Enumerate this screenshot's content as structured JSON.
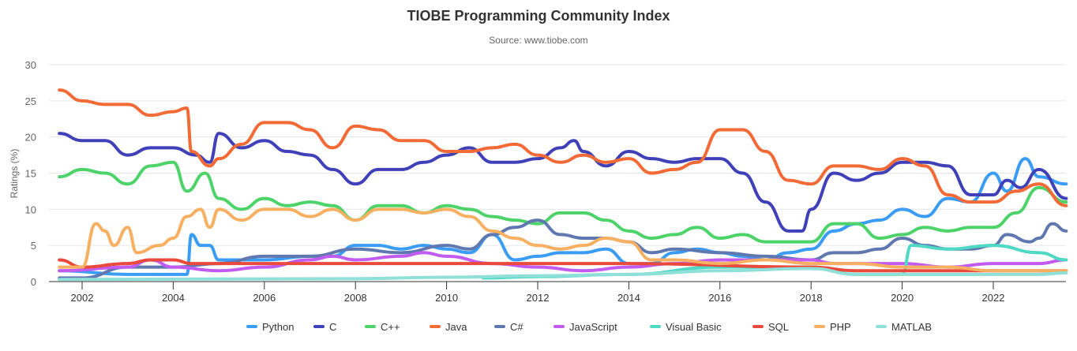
{
  "chart_data": {
    "type": "line",
    "title": "TIOBE Programming Community Index",
    "subtitle": "Source: www.tiobe.com",
    "xlabel": "",
    "ylabel": "Ratings (%)",
    "ylim": [
      0,
      30
    ],
    "xlim": [
      2001.5,
      2023.7
    ],
    "yticks": [
      "0",
      "5",
      "10",
      "15",
      "20",
      "25",
      "30"
    ],
    "xticks": [
      "2002",
      "2004",
      "2006",
      "2008",
      "2010",
      "2012",
      "2014",
      "2016",
      "2018",
      "2020",
      "2022"
    ],
    "grid": true,
    "legend": "bottom",
    "series": [
      {
        "name": "Python",
        "color": "#3a9cf5",
        "x": [
          2001.5,
          2003,
          2004,
          2004.3,
          2004.4,
          2004.6,
          2004.8,
          2005,
          2006,
          2007,
          2007.5,
          2008,
          2008.5,
          2009,
          2009.5,
          2010,
          2010.5,
          2011,
          2011.5,
          2012,
          2012.5,
          2013,
          2013.5,
          2014,
          2014.5,
          2015,
          2015.5,
          2016,
          2016.5,
          2017,
          2017.5,
          2018,
          2018.5,
          2019,
          2019.5,
          2020,
          2020.5,
          2021,
          2021.5,
          2022,
          2022.3,
          2022.7,
          2023,
          2023.6
        ],
        "y": [
          1.5,
          1,
          1,
          1,
          6.5,
          5,
          5,
          3,
          3,
          3.5,
          3.5,
          5,
          5,
          4.5,
          5,
          4.5,
          4,
          6.5,
          3,
          3.5,
          4,
          4,
          4.5,
          2.5,
          2.5,
          4,
          4.5,
          4,
          3.5,
          3,
          4,
          4.5,
          7,
          8,
          8.5,
          10,
          9,
          11.5,
          11,
          15,
          12.5,
          17,
          14.5,
          13.5
        ]
      },
      {
        "name": "C",
        "color": "#4040b8",
        "x": [
          2001.5,
          2002,
          2002.5,
          2003,
          2003.5,
          2004,
          2004.5,
          2004.8,
          2005,
          2005.5,
          2006,
          2006.5,
          2007,
          2007.5,
          2008,
          2008.5,
          2009,
          2009.5,
          2010,
          2010.5,
          2011,
          2011.5,
          2012,
          2012.5,
          2012.8,
          2013,
          2013.5,
          2014,
          2014.5,
          2015,
          2015.5,
          2016,
          2016.5,
          2017,
          2017.5,
          2017.8,
          2018,
          2018.5,
          2019,
          2019.5,
          2020,
          2020.5,
          2021,
          2021.5,
          2022,
          2022.3,
          2022.6,
          2023,
          2023.6
        ],
        "y": [
          20.5,
          19.5,
          19.5,
          17.5,
          18.5,
          18.5,
          17.5,
          16.5,
          20.5,
          18.5,
          19.5,
          18,
          17.5,
          15.5,
          13.5,
          15.5,
          15.5,
          16.5,
          17.5,
          18.5,
          16.5,
          16.5,
          17,
          18.5,
          19.5,
          18,
          16,
          18,
          17,
          16.5,
          17,
          17,
          15,
          11,
          7,
          7,
          10,
          15,
          14,
          15,
          16.5,
          16.5,
          16,
          12,
          12,
          14,
          13,
          15.5,
          11.5
        ]
      },
      {
        "name": "C++",
        "color": "#4dd36a",
        "x": [
          2001.5,
          2002,
          2002.5,
          2003,
          2003.5,
          2004,
          2004.3,
          2004.7,
          2005,
          2005.5,
          2006,
          2006.5,
          2007,
          2007.5,
          2008,
          2008.5,
          2009,
          2009.5,
          2010,
          2010.5,
          2011,
          2011.5,
          2012,
          2012.5,
          2013,
          2013.5,
          2014,
          2014.5,
          2015,
          2015.5,
          2016,
          2016.5,
          2017,
          2017.5,
          2018,
          2018.5,
          2019,
          2019.5,
          2020,
          2020.5,
          2021,
          2021.5,
          2022,
          2022.5,
          2023,
          2023.6
        ],
        "y": [
          14.5,
          15.5,
          15,
          13.5,
          16,
          16.5,
          12.5,
          15,
          11.5,
          10,
          11.5,
          10.5,
          11,
          10.5,
          8.5,
          10.5,
          10.5,
          9.5,
          10.5,
          10,
          9,
          8.5,
          8,
          9.5,
          9.5,
          8.5,
          7,
          6,
          6.5,
          7.5,
          6,
          6.5,
          5.5,
          5.5,
          5.5,
          8,
          8,
          6,
          6.5,
          7.5,
          7,
          7.5,
          7.5,
          9.5,
          13,
          11
        ]
      },
      {
        "name": "Java",
        "color": "#f26a36",
        "x": [
          2001.5,
          2002,
          2002.5,
          2003,
          2003.5,
          2004,
          2004.3,
          2004.4,
          2004.8,
          2005,
          2005.5,
          2006,
          2006.5,
          2007,
          2007.5,
          2008,
          2008.5,
          2009,
          2009.5,
          2010,
          2010.5,
          2011,
          2011.5,
          2012,
          2012.5,
          2013,
          2013.5,
          2014,
          2014.5,
          2015,
          2015.5,
          2016,
          2016.5,
          2017,
          2017.5,
          2018,
          2018.5,
          2019,
          2019.5,
          2020,
          2020.5,
          2021,
          2021.5,
          2022,
          2022.5,
          2023,
          2023.6
        ],
        "y": [
          26.5,
          25,
          24.5,
          24.5,
          23,
          23.5,
          24,
          18,
          16,
          17,
          19,
          22,
          22,
          21,
          18.5,
          21.5,
          21,
          19.5,
          19.5,
          18,
          18,
          18.5,
          19,
          17.5,
          16.5,
          17.5,
          16.5,
          17,
          15,
          15.5,
          16.5,
          21,
          21,
          18,
          14,
          13.5,
          16,
          16,
          15.5,
          17,
          16,
          12,
          11,
          11,
          12.5,
          13.5,
          10.5
        ]
      },
      {
        "name": "C#",
        "color": "#6078b0",
        "x": [
          2001.5,
          2002,
          2003,
          2004,
          2005,
          2006,
          2007,
          2008,
          2009,
          2010,
          2010.5,
          2011,
          2011.5,
          2012,
          2012.5,
          2013,
          2013.5,
          2014,
          2014.5,
          2015,
          2016,
          2017,
          2018,
          2018.5,
          2019,
          2019.5,
          2020,
          2020.5,
          2021,
          2021.5,
          2022,
          2022.3,
          2022.8,
          2023,
          2023.3,
          2023.6
        ],
        "y": [
          0.5,
          0.5,
          2,
          2,
          2.5,
          3.5,
          3.5,
          4.5,
          4,
          5,
          4.5,
          6.5,
          7.5,
          8.5,
          6.5,
          6,
          6,
          5.5,
          4,
          4.5,
          4,
          3.5,
          3,
          4,
          4,
          4.5,
          6,
          5,
          4.5,
          4.5,
          5,
          6.5,
          5.5,
          6,
          8,
          7
        ]
      },
      {
        "name": "JavaScript",
        "color": "#c25cf0",
        "x": [
          2001.5,
          2003,
          2003.5,
          2004,
          2005,
          2006,
          2007,
          2007.5,
          2008,
          2009,
          2009.5,
          2010,
          2011,
          2012,
          2013,
          2014,
          2015,
          2016,
          2017,
          2018,
          2018.5,
          2019,
          2020,
          2021,
          2022,
          2023,
          2023.6
        ],
        "y": [
          1.5,
          2,
          3,
          2,
          1.5,
          2,
          3,
          3.5,
          3,
          3.5,
          4,
          3.5,
          2.5,
          2,
          1.5,
          2,
          2.5,
          3,
          3,
          3,
          2.5,
          2.5,
          2.5,
          2,
          2.5,
          2.5,
          3
        ]
      },
      {
        "name": "Visual Basic",
        "color": "#4fd8c4",
        "x": [
          2010.8,
          2012,
          2014,
          2016,
          2018,
          2019,
          2020,
          2020.2,
          2021,
          2022,
          2023,
          2023.6
        ],
        "y": [
          0.5,
          0.7,
          1,
          2,
          2,
          1,
          1,
          5,
          4.5,
          5,
          4,
          3
        ]
      },
      {
        "name": "SQL",
        "color": "#ea4a3c",
        "x": [
          2001.5,
          2002,
          2003,
          2003.5,
          2004,
          2004.4,
          2014,
          2018,
          2019,
          2020,
          2021,
          2022,
          2023,
          2023.6
        ],
        "y": [
          3,
          2,
          2.5,
          3,
          3,
          2.5,
          2.5,
          2,
          1.5,
          1.5,
          1.5,
          1.5,
          1.5,
          1.5
        ]
      },
      {
        "name": "PHP",
        "color": "#f7b062",
        "x": [
          2001.5,
          2002,
          2002.3,
          2002.5,
          2002.7,
          2003,
          2003.2,
          2003.7,
          2004,
          2004.3,
          2004.6,
          2004.8,
          2005,
          2005.5,
          2006,
          2006.5,
          2007,
          2007.5,
          2008,
          2008.5,
          2009,
          2009.5,
          2010,
          2010.5,
          2011,
          2011.5,
          2012,
          2012.5,
          2013,
          2013.5,
          2014,
          2014.5,
          2015,
          2016,
          2017,
          2018,
          2019,
          2020,
          2021,
          2022,
          2023,
          2023.6
        ],
        "y": [
          2,
          2,
          8,
          7,
          5,
          7.5,
          4,
          5,
          6,
          9,
          10,
          7.5,
          10,
          8.5,
          10,
          10,
          9,
          10,
          8.5,
          10,
          10,
          9.5,
          10,
          9,
          7,
          6,
          5,
          4.5,
          5,
          6,
          5.5,
          3,
          3,
          2.5,
          3,
          2.5,
          2.5,
          2,
          2,
          1.5,
          1.5,
          1.5
        ]
      },
      {
        "name": "MATLAB",
        "color": "#8ee0d8",
        "x": [
          2001.5,
          2008,
          2010,
          2012,
          2014,
          2016,
          2018,
          2019,
          2020,
          2021,
          2022,
          2023,
          2023.6
        ],
        "y": [
          0.3,
          0.4,
          0.6,
          0.8,
          1,
          1.5,
          1.8,
          1,
          1,
          1,
          1,
          1,
          1.2
        ]
      }
    ]
  }
}
